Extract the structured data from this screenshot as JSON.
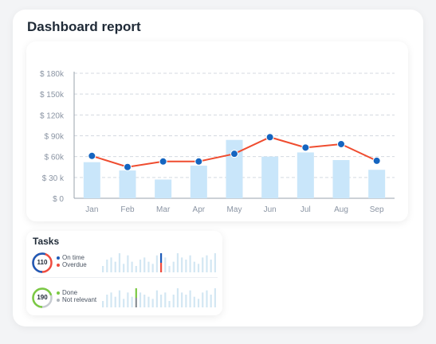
{
  "page": {
    "title": "Dashboard report"
  },
  "chart_data": {
    "type": "bar",
    "categories": [
      "Jan",
      "Feb",
      "Mar",
      "Apr",
      "May",
      "Jun",
      "Jul",
      "Aug",
      "Sep"
    ],
    "series": [
      {
        "type": "bar",
        "values": [
          52,
          40,
          27,
          47,
          84,
          60,
          66,
          55,
          41
        ]
      },
      {
        "type": "line",
        "values": [
          61,
          45,
          53,
          53,
          64,
          88,
          73,
          78,
          54
        ]
      }
    ],
    "yticks": [
      "$ 0",
      "$ 30 k",
      "$ 60k",
      "$ 90k",
      "$ 120k",
      "$ 150k",
      "$ 180k"
    ],
    "ylim": [
      0,
      180
    ],
    "grid": true,
    "colors": {
      "bar": "#c9e6fa",
      "line": "#ef4c2f",
      "point": "#1565c0",
      "grid": "#d4d9e0",
      "axis": "#8a94a3"
    }
  },
  "tasks": {
    "title": "Tasks",
    "rows": [
      {
        "count": "110",
        "ring_primary": "#1e5bb8",
        "ring_secondary": "#ef4c3f",
        "primary_fraction": 0.55,
        "legend": [
          {
            "label": "On time",
            "color": "#1e5bb8"
          },
          {
            "label": "Overdue",
            "color": "#ef4c3f"
          }
        ],
        "bars": [
          6,
          12,
          14,
          10,
          18,
          8,
          16,
          10,
          6,
          12,
          14,
          10,
          8,
          16,
          12,
          14,
          6,
          10,
          18,
          14,
          12,
          16,
          10,
          8,
          14,
          16,
          12,
          18
        ],
        "highlight_index": 14,
        "highlight_colors": [
          "#1e5bb8",
          "#ef4c3f"
        ]
      },
      {
        "count": "190",
        "ring_primary": "#7bc943",
        "ring_secondary": "#c7cbd1",
        "primary_fraction": 0.7,
        "legend": [
          {
            "label": "Done",
            "color": "#7bc943"
          },
          {
            "label": "Not relevant",
            "color": "#b0b6bd"
          }
        ],
        "bars": [
          6,
          12,
          14,
          10,
          16,
          8,
          14,
          10,
          6,
          14,
          12,
          10,
          8,
          16,
          12,
          14,
          6,
          12,
          18,
          14,
          12,
          16,
          10,
          8,
          14,
          16,
          12,
          18
        ],
        "highlight_index": 8,
        "highlight_colors": [
          "#7bc943",
          "#8a9096"
        ]
      }
    ]
  }
}
